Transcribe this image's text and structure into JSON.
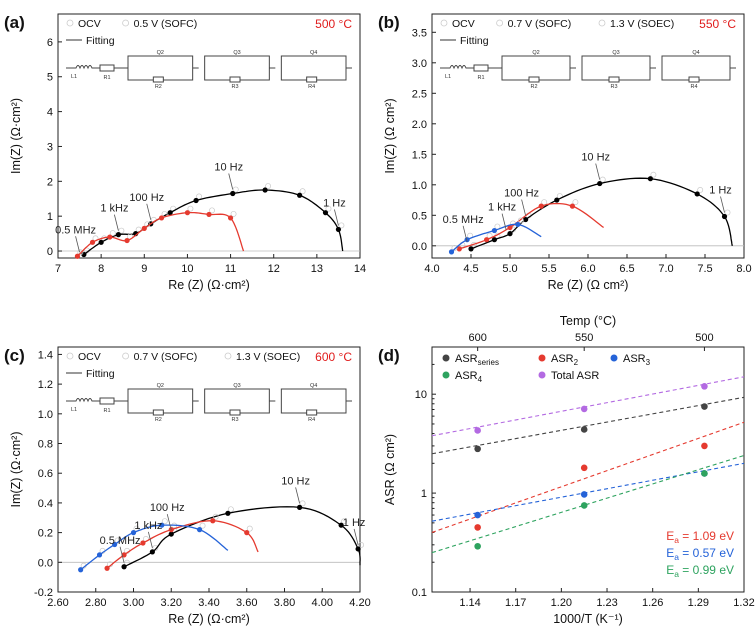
{
  "chart_data": [
    {
      "type": "scatter",
      "panel_label": "(a)",
      "temperature_label": "500 °C",
      "xlabel": "Re (Z) (Ω·cm²)",
      "ylabel": "Im(Z) (Ω·cm²)",
      "xlim": [
        7,
        14
      ],
      "ylim": [
        -0.2,
        6.8
      ],
      "xticks": [
        7,
        8,
        9,
        10,
        11,
        12,
        13,
        14
      ],
      "yticks": [
        0,
        1,
        2,
        3,
        4,
        5,
        6
      ],
      "legend": {
        "placement": "top-left",
        "entries": [
          "OCV",
          "0.5 V (SOFC)",
          "Fitting"
        ]
      },
      "circuit": [
        "L1",
        "R1",
        "Q2",
        "R2",
        "Q3",
        "R3",
        "Q4",
        "R4"
      ],
      "annotations": [
        {
          "text": "0.5 MHz",
          "x": 7.5,
          "y": -0.15
        },
        {
          "text": "1 kHz",
          "x": 8.4,
          "y": 0.47
        },
        {
          "text": "100 Hz",
          "x": 9.15,
          "y": 0.78
        },
        {
          "text": "10 Hz",
          "x": 11.05,
          "y": 1.65
        },
        {
          "text": "1 Hz",
          "x": 13.5,
          "y": 0.62
        }
      ],
      "series": [
        {
          "name": "OCV",
          "color": "#000000",
          "x": [
            7.6,
            8.0,
            8.4,
            8.8,
            9.15,
            9.6,
            10.2,
            11.05,
            11.8,
            12.6,
            13.2,
            13.5,
            13.6
          ],
          "y": [
            -0.1,
            0.25,
            0.47,
            0.5,
            0.78,
            1.1,
            1.45,
            1.65,
            1.75,
            1.6,
            1.1,
            0.62,
            0.0
          ]
        },
        {
          "name": "0.5 V (SOFC)",
          "color": "#e53a2f",
          "x": [
            7.45,
            7.8,
            8.2,
            8.6,
            9.0,
            9.4,
            10.0,
            10.5,
            11.0,
            11.3
          ],
          "y": [
            -0.15,
            0.25,
            0.4,
            0.3,
            0.65,
            0.95,
            1.1,
            1.05,
            0.95,
            0.0
          ]
        }
      ]
    },
    {
      "type": "scatter",
      "panel_label": "(b)",
      "temperature_label": "550 °C",
      "xlabel": "Re (Z) (Ω cm²)",
      "ylabel": "Im(Z) (Ω cm²)",
      "xlim": [
        4.0,
        8.0
      ],
      "ylim": [
        -0.2,
        3.8
      ],
      "xticks": [
        4.0,
        4.5,
        5.0,
        5.5,
        6.0,
        6.5,
        7.0,
        7.5,
        8.0
      ],
      "yticks": [
        0.0,
        0.5,
        1.0,
        1.5,
        2.0,
        2.5,
        3.0,
        3.5
      ],
      "legend": {
        "placement": "top-left",
        "entries": [
          "OCV",
          "0.7 V (SOFC)",
          "1.3 V (SOEC)",
          "Fitting"
        ]
      },
      "circuit": [
        "L1",
        "R1",
        "Q2",
        "R2",
        "Q3",
        "R3",
        "Q4",
        "R4"
      ],
      "annotations": [
        {
          "text": "0.5 MHz",
          "x": 4.45,
          "y": 0.0
        },
        {
          "text": "1 kHz",
          "x": 4.95,
          "y": 0.2
        },
        {
          "text": "100 Hz",
          "x": 5.2,
          "y": 0.43
        },
        {
          "text": "10 Hz",
          "x": 6.15,
          "y": 1.02
        },
        {
          "text": "1 Hz",
          "x": 7.75,
          "y": 0.48
        }
      ],
      "series": [
        {
          "name": "OCV",
          "color": "#000000",
          "x": [
            4.5,
            4.8,
            5.0,
            5.2,
            5.6,
            6.15,
            6.8,
            7.4,
            7.75,
            7.85
          ],
          "y": [
            -0.05,
            0.1,
            0.2,
            0.43,
            0.75,
            1.02,
            1.1,
            0.85,
            0.48,
            0.0
          ]
        },
        {
          "name": "0.7 V (SOFC)",
          "color": "#e53a2f",
          "x": [
            4.35,
            4.7,
            5.0,
            5.4,
            5.8,
            6.2
          ],
          "y": [
            -0.05,
            0.1,
            0.3,
            0.65,
            0.65,
            0.3
          ]
        },
        {
          "name": "1.3 V (SOEC)",
          "color": "#2563d8",
          "x": [
            4.25,
            4.45,
            4.8,
            5.1,
            5.4
          ],
          "y": [
            -0.1,
            0.1,
            0.25,
            0.35,
            0.15
          ]
        }
      ]
    },
    {
      "type": "scatter",
      "panel_label": "(c)",
      "temperature_label": "600 °C",
      "xlabel": "Re (Z) (Ω·cm²)",
      "ylabel": "Im(Z) (Ω·cm²)",
      "xlim": [
        2.6,
        4.2
      ],
      "ylim": [
        -0.2,
        1.45
      ],
      "xticks": [
        2.6,
        2.8,
        3.0,
        3.2,
        3.4,
        3.6,
        3.8,
        4.0,
        4.2
      ],
      "yticks": [
        -0.2,
        0.0,
        0.2,
        0.4,
        0.6,
        0.8,
        1.0,
        1.2,
        1.4
      ],
      "legend": {
        "placement": "top-left",
        "entries": [
          "OCV",
          "0.7 V (SOFC)",
          "1.3 V (SOEC)",
          "Fitting"
        ]
      },
      "circuit": [
        "L1",
        "R1",
        "Q2",
        "R2",
        "Q3",
        "R3",
        "Q4",
        "R4"
      ],
      "annotations": [
        {
          "text": "0.5 MHz",
          "x": 2.95,
          "y": -0.03
        },
        {
          "text": "1 kHz",
          "x": 3.1,
          "y": 0.07
        },
        {
          "text": "100 Hz",
          "x": 3.2,
          "y": 0.19
        },
        {
          "text": "10 Hz",
          "x": 3.88,
          "y": 0.37
        },
        {
          "text": "1 Hz",
          "x": 4.19,
          "y": 0.09
        }
      ],
      "series": [
        {
          "name": "OCV",
          "color": "#000000",
          "x": [
            2.95,
            3.1,
            3.2,
            3.5,
            3.88,
            4.1,
            4.19,
            4.2
          ],
          "y": [
            -0.03,
            0.07,
            0.19,
            0.33,
            0.37,
            0.25,
            0.09,
            -0.02
          ]
        },
        {
          "name": "0.7 V (SOFC)",
          "color": "#e53a2f",
          "x": [
            2.86,
            2.95,
            3.05,
            3.2,
            3.42,
            3.6,
            3.66
          ],
          "y": [
            -0.04,
            0.05,
            0.13,
            0.22,
            0.28,
            0.2,
            0.07
          ]
        },
        {
          "name": "1.3 V (SOEC)",
          "color": "#2563d8",
          "x": [
            2.72,
            2.82,
            2.9,
            3.0,
            3.15,
            3.35,
            3.5
          ],
          "y": [
            -0.05,
            0.05,
            0.12,
            0.2,
            0.25,
            0.22,
            0.08
          ]
        }
      ]
    },
    {
      "type": "scatter",
      "panel_label": "(d)",
      "xlabel": "1000/T (K⁻¹)",
      "ylabel": "ASR (Ω cm²)",
      "top_xlabel": "Temp (°C)",
      "yscale": "log",
      "xlim": [
        1.115,
        1.32
      ],
      "ylim": [
        0.1,
        30
      ],
      "xticks": [
        1.14,
        1.17,
        1.2,
        1.23,
        1.26,
        1.29,
        1.32
      ],
      "yticks": [
        0.1,
        1,
        10
      ],
      "top_ticks": [
        {
          "label": "600",
          "x": 1.145
        },
        {
          "label": "550",
          "x": 1.215
        },
        {
          "label": "500",
          "x": 1.294
        }
      ],
      "legend": {
        "placement": "top",
        "entries": [
          "ASRseries",
          "ASR2",
          "ASR3",
          "ASR4",
          "Total ASR"
        ]
      },
      "activation_energies": [
        {
          "label": "E",
          "sub": "a",
          "value": " = 1.09 eV",
          "color": "#e53a2f"
        },
        {
          "label": "E",
          "sub": "a",
          "value": " = 0.57 eV",
          "color": "#2563d8"
        },
        {
          "label": "E",
          "sub": "a",
          "value": " = 0.99 eV",
          "color": "#2ea35f"
        }
      ],
      "series": [
        {
          "name": "ASR",
          "sub": "series",
          "color": "#444444",
          "x": [
            1.145,
            1.215,
            1.294
          ],
          "y": [
            2.8,
            4.4,
            7.5
          ],
          "fit": [
            2.5,
            9.3
          ]
        },
        {
          "name": "ASR",
          "sub": "2",
          "color": "#e53a2f",
          "x": [
            1.145,
            1.215,
            1.294
          ],
          "y": [
            0.45,
            1.8,
            3.0
          ],
          "fit": [
            0.4,
            5.2
          ]
        },
        {
          "name": "ASR",
          "sub": "3",
          "color": "#2563d8",
          "x": [
            1.145,
            1.215,
            1.294
          ],
          "y": [
            0.6,
            0.97,
            1.58
          ],
          "fit": [
            0.52,
            2.0
          ]
        },
        {
          "name": "ASR",
          "sub": "4",
          "color": "#2ea35f",
          "x": [
            1.145,
            1.215,
            1.294
          ],
          "y": [
            0.29,
            0.75,
            1.58
          ],
          "fit": [
            0.25,
            2.4
          ]
        },
        {
          "name": "Total ASR",
          "sub": "",
          "color": "#b36ae2",
          "x": [
            1.145,
            1.215,
            1.294
          ],
          "y": [
            4.3,
            7.1,
            12.0
          ],
          "fit": [
            3.8,
            15.0
          ]
        }
      ]
    }
  ]
}
